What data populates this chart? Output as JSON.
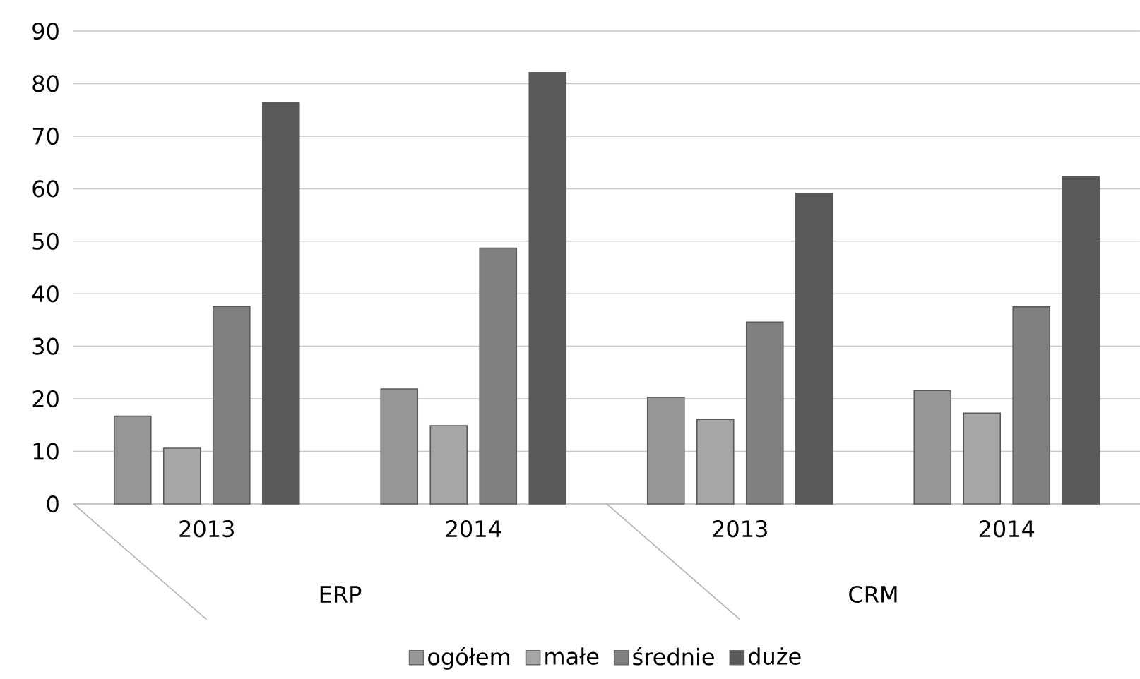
{
  "chart_data": {
    "type": "bar",
    "categories": [
      "2013",
      "2014",
      "2013",
      "2014"
    ],
    "series": [
      {
        "name": "ogółem",
        "color": "#969696",
        "values": [
          16.7,
          21.9,
          20.3,
          21.6
        ]
      },
      {
        "name": "małe",
        "color": "#a6a6a6",
        "values": [
          10.6,
          14.9,
          16.1,
          17.3
        ]
      },
      {
        "name": "średnie",
        "color": "#808080",
        "values": [
          37.6,
          48.7,
          34.6,
          37.5
        ]
      },
      {
        "name": "duże",
        "color": "#595959",
        "values": [
          76.4,
          82.1,
          59.1,
          62.3
        ]
      }
    ],
    "annotations": [
      "ERP",
      "CRM"
    ],
    "ylim": [
      0,
      90
    ],
    "yticks": [
      0,
      10,
      20,
      30,
      40,
      50,
      60,
      70,
      80,
      90
    ],
    "grid": "y",
    "legend": "bottom"
  }
}
